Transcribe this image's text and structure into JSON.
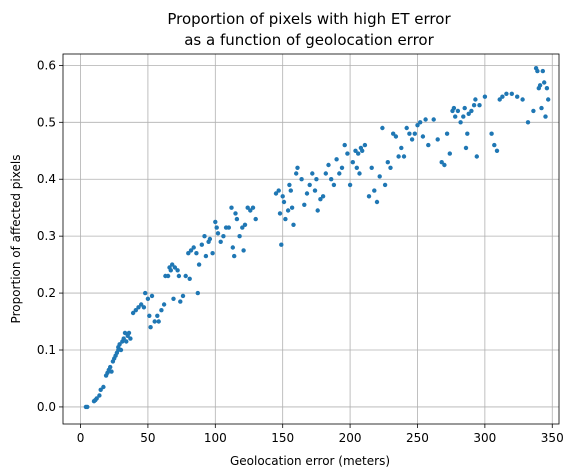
{
  "chart_data": {
    "type": "scatter",
    "title": [
      "Proportion of pixels with high ET error",
      "as a function of geolocation error"
    ],
    "xlabel": "Geolocation error (meters)",
    "ylabel": "Proportion of affected pixels",
    "xlim": [
      -13,
      355
    ],
    "ylim": [
      -0.03,
      0.62
    ],
    "xticks": [
      0,
      50,
      100,
      150,
      200,
      250,
      300,
      350
    ],
    "xtick_labels": [
      "0",
      "50",
      "100",
      "150",
      "200",
      "250",
      "300",
      "350"
    ],
    "yticks": [
      0.0,
      0.1,
      0.2,
      0.3,
      0.4,
      0.5,
      0.6
    ],
    "ytick_labels": [
      "0.0",
      "0.1",
      "0.2",
      "0.3",
      "0.4",
      "0.5",
      "0.6"
    ],
    "grid": true,
    "color": "#1f77b4",
    "points": [
      [
        4,
        0.0
      ],
      [
        5,
        0.0
      ],
      [
        10,
        0.01
      ],
      [
        11,
        0.012
      ],
      [
        12,
        0.015
      ],
      [
        14,
        0.02
      ],
      [
        15,
        0.03
      ],
      [
        17,
        0.035
      ],
      [
        19,
        0.055
      ],
      [
        20,
        0.06
      ],
      [
        21,
        0.065
      ],
      [
        22,
        0.07
      ],
      [
        23,
        0.062
      ],
      [
        24,
        0.08
      ],
      [
        25,
        0.085
      ],
      [
        26,
        0.09
      ],
      [
        27,
        0.095
      ],
      [
        28,
        0.1
      ],
      [
        28,
        0.105
      ],
      [
        29,
        0.11
      ],
      [
        30,
        0.1
      ],
      [
        31,
        0.115
      ],
      [
        32,
        0.12
      ],
      [
        33,
        0.13
      ],
      [
        34,
        0.115
      ],
      [
        35,
        0.125
      ],
      [
        36,
        0.13
      ],
      [
        37,
        0.12
      ],
      [
        39,
        0.165
      ],
      [
        41,
        0.17
      ],
      [
        43,
        0.175
      ],
      [
        45,
        0.18
      ],
      [
        47,
        0.175
      ],
      [
        48,
        0.2
      ],
      [
        50,
        0.19
      ],
      [
        51,
        0.16
      ],
      [
        52,
        0.14
      ],
      [
        53,
        0.195
      ],
      [
        55,
        0.15
      ],
      [
        57,
        0.16
      ],
      [
        58,
        0.15
      ],
      [
        60,
        0.17
      ],
      [
        62,
        0.18
      ],
      [
        63,
        0.23
      ],
      [
        65,
        0.23
      ],
      [
        66,
        0.245
      ],
      [
        67,
        0.24
      ],
      [
        68,
        0.25
      ],
      [
        69,
        0.19
      ],
      [
        70,
        0.245
      ],
      [
        72,
        0.24
      ],
      [
        73,
        0.23
      ],
      [
        74,
        0.185
      ],
      [
        76,
        0.195
      ],
      [
        78,
        0.23
      ],
      [
        80,
        0.27
      ],
      [
        81,
        0.225
      ],
      [
        82,
        0.275
      ],
      [
        84,
        0.28
      ],
      [
        86,
        0.27
      ],
      [
        87,
        0.2
      ],
      [
        88,
        0.25
      ],
      [
        90,
        0.285
      ],
      [
        92,
        0.3
      ],
      [
        93,
        0.265
      ],
      [
        95,
        0.29
      ],
      [
        96,
        0.295
      ],
      [
        98,
        0.27
      ],
      [
        100,
        0.325
      ],
      [
        101,
        0.315
      ],
      [
        102,
        0.305
      ],
      [
        104,
        0.29
      ],
      [
        106,
        0.3
      ],
      [
        108,
        0.315
      ],
      [
        110,
        0.315
      ],
      [
        112,
        0.35
      ],
      [
        113,
        0.28
      ],
      [
        114,
        0.265
      ],
      [
        115,
        0.34
      ],
      [
        116,
        0.33
      ],
      [
        118,
        0.3
      ],
      [
        120,
        0.315
      ],
      [
        121,
        0.275
      ],
      [
        122,
        0.32
      ],
      [
        124,
        0.35
      ],
      [
        126,
        0.345
      ],
      [
        128,
        0.35
      ],
      [
        130,
        0.33
      ],
      [
        145,
        0.375
      ],
      [
        147,
        0.38
      ],
      [
        148,
        0.34
      ],
      [
        149,
        0.285
      ],
      [
        150,
        0.37
      ],
      [
        151,
        0.36
      ],
      [
        152,
        0.33
      ],
      [
        154,
        0.345
      ],
      [
        155,
        0.39
      ],
      [
        156,
        0.38
      ],
      [
        157,
        0.35
      ],
      [
        158,
        0.32
      ],
      [
        160,
        0.41
      ],
      [
        161,
        0.42
      ],
      [
        164,
        0.4
      ],
      [
        166,
        0.355
      ],
      [
        168,
        0.375
      ],
      [
        170,
        0.39
      ],
      [
        172,
        0.41
      ],
      [
        174,
        0.38
      ],
      [
        175,
        0.4
      ],
      [
        176,
        0.345
      ],
      [
        178,
        0.365
      ],
      [
        180,
        0.37
      ],
      [
        182,
        0.41
      ],
      [
        184,
        0.425
      ],
      [
        186,
        0.4
      ],
      [
        188,
        0.39
      ],
      [
        190,
        0.435
      ],
      [
        192,
        0.41
      ],
      [
        194,
        0.42
      ],
      [
        196,
        0.46
      ],
      [
        198,
        0.445
      ],
      [
        200,
        0.39
      ],
      [
        202,
        0.43
      ],
      [
        204,
        0.45
      ],
      [
        205,
        0.42
      ],
      [
        206,
        0.445
      ],
      [
        207,
        0.41
      ],
      [
        208,
        0.455
      ],
      [
        209,
        0.45
      ],
      [
        211,
        0.46
      ],
      [
        214,
        0.37
      ],
      [
        216,
        0.42
      ],
      [
        218,
        0.38
      ],
      [
        220,
        0.36
      ],
      [
        222,
        0.405
      ],
      [
        224,
        0.49
      ],
      [
        226,
        0.39
      ],
      [
        228,
        0.43
      ],
      [
        230,
        0.42
      ],
      [
        232,
        0.48
      ],
      [
        234,
        0.475
      ],
      [
        236,
        0.44
      ],
      [
        238,
        0.455
      ],
      [
        240,
        0.44
      ],
      [
        242,
        0.49
      ],
      [
        244,
        0.48
      ],
      [
        246,
        0.47
      ],
      [
        248,
        0.48
      ],
      [
        250,
        0.495
      ],
      [
        252,
        0.5
      ],
      [
        254,
        0.475
      ],
      [
        256,
        0.505
      ],
      [
        258,
        0.46
      ],
      [
        262,
        0.505
      ],
      [
        265,
        0.47
      ],
      [
        268,
        0.43
      ],
      [
        270,
        0.425
      ],
      [
        272,
        0.48
      ],
      [
        274,
        0.445
      ],
      [
        276,
        0.52
      ],
      [
        277,
        0.525
      ],
      [
        278,
        0.51
      ],
      [
        280,
        0.52
      ],
      [
        282,
        0.5
      ],
      [
        284,
        0.51
      ],
      [
        285,
        0.525
      ],
      [
        286,
        0.455
      ],
      [
        287,
        0.48
      ],
      [
        288,
        0.515
      ],
      [
        290,
        0.52
      ],
      [
        292,
        0.53
      ],
      [
        293,
        0.54
      ],
      [
        294,
        0.44
      ],
      [
        296,
        0.53
      ],
      [
        300,
        0.545
      ],
      [
        305,
        0.48
      ],
      [
        307,
        0.46
      ],
      [
        309,
        0.45
      ],
      [
        311,
        0.54
      ],
      [
        313,
        0.545
      ],
      [
        316,
        0.55
      ],
      [
        320,
        0.55
      ],
      [
        324,
        0.545
      ],
      [
        328,
        0.54
      ],
      [
        332,
        0.5
      ],
      [
        336,
        0.52
      ],
      [
        338,
        0.595
      ],
      [
        339,
        0.59
      ],
      [
        340,
        0.56
      ],
      [
        341,
        0.565
      ],
      [
        342,
        0.525
      ],
      [
        343,
        0.59
      ],
      [
        344,
        0.57
      ],
      [
        345,
        0.51
      ],
      [
        346,
        0.56
      ],
      [
        347,
        0.54
      ]
    ]
  }
}
